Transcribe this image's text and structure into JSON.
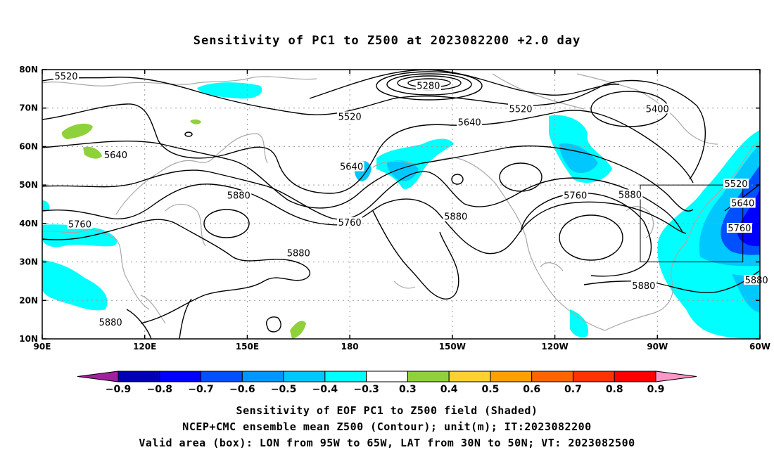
{
  "title": "Sensitivity of PC1 to Z500 at 2023082200 +2.0 day",
  "map": {
    "lon_range": [
      90,
      300
    ],
    "lat_range": [
      10,
      80
    ],
    "lat_ticks": [
      {
        "lat": 80,
        "label": "80N"
      },
      {
        "lat": 70,
        "label": "70N"
      },
      {
        "lat": 60,
        "label": "60N"
      },
      {
        "lat": 50,
        "label": "50N"
      },
      {
        "lat": 40,
        "label": "40N"
      },
      {
        "lat": 30,
        "label": "30N"
      },
      {
        "lat": 20,
        "label": "20N"
      },
      {
        "lat": 10,
        "label": "10N"
      }
    ],
    "lon_ticks": [
      {
        "lon": 90,
        "label": "90E"
      },
      {
        "lon": 120,
        "label": "120E"
      },
      {
        "lon": 150,
        "label": "150E"
      },
      {
        "lon": 180,
        "label": "180"
      },
      {
        "lon": 210,
        "label": "150W"
      },
      {
        "lon": 240,
        "label": "120W"
      },
      {
        "lon": 270,
        "label": "90W"
      },
      {
        "lon": 300,
        "label": "60W"
      }
    ],
    "valid_box": {
      "lon_min": 265,
      "lon_max": 295,
      "lat_min": 30,
      "lat_max": 50
    },
    "contour_labels": [
      {
        "text": "5520",
        "lon": 97,
        "lat": 78
      },
      {
        "text": "5280",
        "lon": 203,
        "lat": 75.5
      },
      {
        "text": "5520",
        "lon": 180,
        "lat": 67.5
      },
      {
        "text": "5520",
        "lon": 230,
        "lat": 69.5
      },
      {
        "text": "5400",
        "lon": 270,
        "lat": 69.5
      },
      {
        "text": "5640",
        "lon": 215,
        "lat": 66
      },
      {
        "text": "5640",
        "lon": 111.5,
        "lat": 57.5
      },
      {
        "text": "5880",
        "lon": 147.5,
        "lat": 47
      },
      {
        "text": "5640",
        "lon": 180.5,
        "lat": 54.5
      },
      {
        "text": "5760",
        "lon": 101,
        "lat": 39.5
      },
      {
        "text": "5760",
        "lon": 180,
        "lat": 40
      },
      {
        "text": "5880",
        "lon": 211,
        "lat": 41.5
      },
      {
        "text": "5760",
        "lon": 246,
        "lat": 47
      },
      {
        "text": "5880",
        "lon": 262,
        "lat": 47.2
      },
      {
        "text": "5520",
        "lon": 293,
        "lat": 50
      },
      {
        "text": "5640",
        "lon": 295,
        "lat": 45
      },
      {
        "text": "5760",
        "lon": 294,
        "lat": 38.5
      },
      {
        "text": "5880",
        "lon": 165,
        "lat": 32
      },
      {
        "text": "5880",
        "lon": 299,
        "lat": 25
      },
      {
        "text": "5880",
        "lon": 266,
        "lat": 23.5
      },
      {
        "text": "5880",
        "lon": 110,
        "lat": 14
      }
    ]
  },
  "colorbar": {
    "colors": [
      "#a020a0",
      "#0000b4",
      "#0000ff",
      "#0050ff",
      "#0096ff",
      "#00c8ff",
      "#00ffff",
      "#ffffff",
      "#8fd13a",
      "#ffd030",
      "#ffa000",
      "#ff6400",
      "#ff3200",
      "#ff0000",
      "#ff96c8"
    ],
    "labels": [
      "−0.9",
      "−0.8",
      "−0.7",
      "−0.6",
      "−0.5",
      "−0.4",
      "−0.3",
      "0.3",
      "0.4",
      "0.5",
      "0.6",
      "0.7",
      "0.8",
      "0.9"
    ]
  },
  "captions": {
    "line1": "Sensitivity of EOF PC1 to Z500 field (Shaded)",
    "line2": "NCEP+CMC ensemble mean Z500 (Contour); unit(m); IT:2023082200",
    "line3": "Valid area (box): LON from 95W to 65W, LAT from 30N to 50N; VT: 2023082500"
  }
}
